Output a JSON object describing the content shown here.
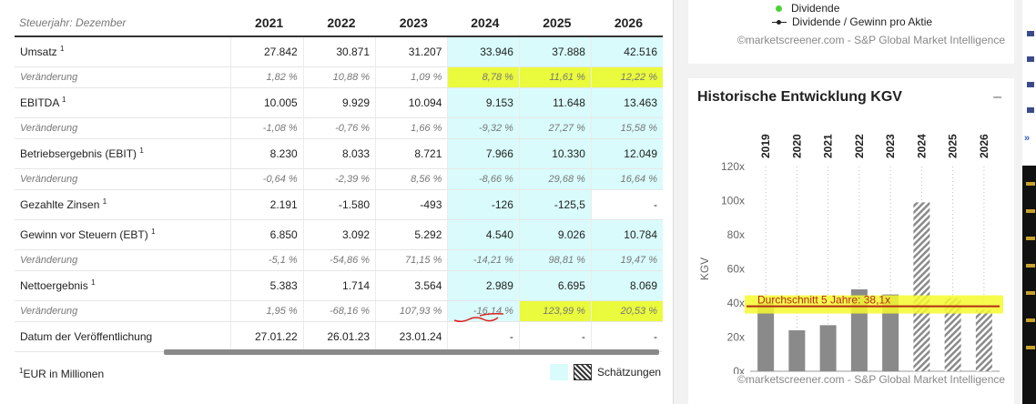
{
  "financials": {
    "header_label": "Steuerjahr: Dezember",
    "years": [
      "2021",
      "2022",
      "2023",
      "2024",
      "2025",
      "2026"
    ],
    "rows": [
      {
        "type": "main",
        "label": "Umsatz",
        "sup": "1",
        "values": [
          "27.842",
          "30.871",
          "31.207",
          "33.946",
          "37.888",
          "42.516"
        ],
        "est": [
          false,
          false,
          false,
          true,
          true,
          true
        ]
      },
      {
        "type": "chg",
        "label": "Veränderung",
        "values": [
          "1,82 %",
          "10,88 %",
          "1,09 %",
          "8,78 %",
          "11,61 %",
          "12,22 %"
        ],
        "est": [
          false,
          false,
          false,
          true,
          true,
          true
        ],
        "highlight": [
          false,
          false,
          false,
          true,
          true,
          true
        ]
      },
      {
        "type": "main",
        "label": "EBITDA",
        "sup": "1",
        "values": [
          "10.005",
          "9.929",
          "10.094",
          "9.153",
          "11.648",
          "13.463"
        ],
        "est": [
          false,
          false,
          false,
          true,
          true,
          true
        ]
      },
      {
        "type": "chg",
        "label": "Veränderung",
        "values": [
          "-1,08 %",
          "-0,76 %",
          "1,66 %",
          "-9,32 %",
          "27,27 %",
          "15,58 %"
        ],
        "est": [
          false,
          false,
          false,
          true,
          true,
          true
        ]
      },
      {
        "type": "main",
        "label": "Betriebsergebnis (EBIT)",
        "sup": "1",
        "values": [
          "8.230",
          "8.033",
          "8.721",
          "7.966",
          "10.330",
          "12.049"
        ],
        "est": [
          false,
          false,
          false,
          true,
          true,
          true
        ]
      },
      {
        "type": "chg",
        "label": "Veränderung",
        "values": [
          "-0,64 %",
          "-2,39 %",
          "8,56 %",
          "-8,66 %",
          "29,68 %",
          "16,64 %"
        ],
        "est": [
          false,
          false,
          false,
          true,
          true,
          true
        ]
      },
      {
        "type": "main",
        "label": "Gezahlte Zinsen",
        "sup": "1",
        "values": [
          "2.191",
          "-1.580",
          "-493",
          "-126",
          "-125,5",
          "-"
        ],
        "est": [
          false,
          false,
          false,
          true,
          true,
          false
        ]
      },
      {
        "type": "main",
        "label": "Gewinn vor Steuern (EBT)",
        "sup": "1",
        "values": [
          "6.850",
          "3.092",
          "5.292",
          "4.540",
          "9.026",
          "10.784"
        ],
        "est": [
          false,
          false,
          false,
          true,
          true,
          true
        ]
      },
      {
        "type": "chg",
        "label": "Veränderung",
        "values": [
          "-5,1 %",
          "-54,86 %",
          "71,15 %",
          "-14,21 %",
          "98,81 %",
          "19,47 %"
        ],
        "est": [
          false,
          false,
          false,
          true,
          true,
          true
        ]
      },
      {
        "type": "main",
        "label": "Nettoergebnis",
        "sup": "1",
        "values": [
          "5.383",
          "1.714",
          "3.564",
          "2.989",
          "6.695",
          "8.069"
        ],
        "est": [
          false,
          false,
          false,
          true,
          true,
          true
        ]
      },
      {
        "type": "chg",
        "label": "Veränderung",
        "values": [
          "1,95 %",
          "-68,16 %",
          "107,93 %",
          "-16,14 %",
          "123,99 %",
          "20,53 %"
        ],
        "est": [
          false,
          false,
          false,
          true,
          true,
          true
        ],
        "highlight": [
          false,
          false,
          false,
          false,
          true,
          true
        ]
      },
      {
        "type": "main",
        "label": "Datum der Veröffentlichung",
        "sup": "",
        "values": [
          "27.01.22",
          "26.01.23",
          "23.01.24",
          "-",
          "-",
          "-"
        ],
        "est": [
          false,
          false,
          false,
          false,
          false,
          false
        ]
      }
    ],
    "footnote_sup": "1",
    "footnote": "EUR in Millionen",
    "legend_estimates": "Schätzungen"
  },
  "dividend_card": {
    "legend": [
      {
        "label": "Dividende",
        "color": "#4cd137"
      },
      {
        "label": "Dividende / Gewinn pro Aktie",
        "color": "#222222"
      }
    ],
    "credit": "©marketscreener.com - S&P Global Market Intelligence"
  },
  "kgv_card": {
    "title": "Historische Entwicklung KGV",
    "minimize": "–",
    "credit": "©marketscreener.com - S&P Global Market Intelligence"
  },
  "chart_data": {
    "type": "bar",
    "categories": [
      "2019",
      "2020",
      "2021",
      "2022",
      "2023",
      "2024",
      "2025",
      "2026"
    ],
    "values": [
      40,
      24,
      27,
      48,
      45,
      99,
      43,
      36
    ],
    "estimated": [
      false,
      false,
      false,
      false,
      false,
      true,
      true,
      true
    ],
    "ylabel": "KGV",
    "yticks": [
      "0x",
      "20x",
      "40x",
      "60x",
      "80x",
      "100x",
      "120x"
    ],
    "ylim": [
      0,
      120
    ],
    "average_line": {
      "label": "Durchschnitt 5 Jahre: 38,1x",
      "value": 38.1
    },
    "bar_color": "#8a8a8a",
    "grid": true
  }
}
